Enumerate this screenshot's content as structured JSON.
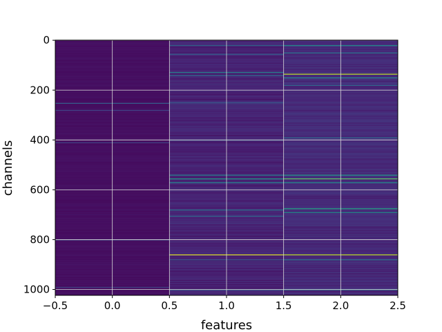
{
  "chart_data": {
    "type": "heatmap",
    "title": "",
    "xlabel": "features",
    "ylabel": "channels",
    "columns": [
      0,
      1,
      2
    ],
    "n_rows": 1024,
    "xlim": [
      -0.5,
      2.5
    ],
    "ylim": [
      1023.5,
      -0.5
    ],
    "y_inverted": true,
    "x_ticks": [
      -0.5,
      0.0,
      0.5,
      1.0,
      1.5,
      2.0,
      2.5
    ],
    "x_tick_labels": [
      "−0.5",
      "0.0",
      "0.5",
      "1.0",
      "1.5",
      "2.0",
      "2.5"
    ],
    "y_ticks": [
      0,
      200,
      400,
      600,
      800,
      1000
    ],
    "y_tick_labels": [
      "0",
      "200",
      "400",
      "600",
      "800",
      "1000"
    ],
    "grid": true,
    "colormap": "viridis",
    "background_value": 0.05,
    "column_base": [
      0.04,
      0.1,
      0.12
    ],
    "highlight_rows": [
      {
        "column": 0,
        "row": 252,
        "value": 0.3
      },
      {
        "column": 0,
        "row": 280,
        "value": 0.2
      },
      {
        "column": 0,
        "row": 410,
        "value": 0.2
      },
      {
        "column": 0,
        "row": 800,
        "value": 0.25
      },
      {
        "column": 0,
        "row": 990,
        "value": 0.2
      },
      {
        "column": 1,
        "row": 20,
        "value": 0.35
      },
      {
        "column": 1,
        "row": 55,
        "value": 0.3
      },
      {
        "column": 1,
        "row": 128,
        "value": 0.45
      },
      {
        "column": 1,
        "row": 140,
        "value": 0.35
      },
      {
        "column": 1,
        "row": 250,
        "value": 0.3
      },
      {
        "column": 1,
        "row": 400,
        "value": 0.3
      },
      {
        "column": 1,
        "row": 540,
        "value": 0.45
      },
      {
        "column": 1,
        "row": 555,
        "value": 0.55
      },
      {
        "column": 1,
        "row": 570,
        "value": 0.45
      },
      {
        "column": 1,
        "row": 680,
        "value": 0.4
      },
      {
        "column": 1,
        "row": 705,
        "value": 0.35
      },
      {
        "column": 1,
        "row": 860,
        "value": 0.95
      },
      {
        "column": 1,
        "row": 880,
        "value": 0.3
      },
      {
        "column": 1,
        "row": 1000,
        "value": 0.35
      },
      {
        "column": 2,
        "row": 20,
        "value": 0.5
      },
      {
        "column": 2,
        "row": 50,
        "value": 0.4
      },
      {
        "column": 2,
        "row": 135,
        "value": 0.9
      },
      {
        "column": 2,
        "row": 150,
        "value": 0.45
      },
      {
        "column": 2,
        "row": 180,
        "value": 0.35
      },
      {
        "column": 2,
        "row": 390,
        "value": 0.35
      },
      {
        "column": 2,
        "row": 540,
        "value": 0.55
      },
      {
        "column": 2,
        "row": 555,
        "value": 0.75
      },
      {
        "column": 2,
        "row": 570,
        "value": 0.5
      },
      {
        "column": 2,
        "row": 675,
        "value": 0.6
      },
      {
        "column": 2,
        "row": 690,
        "value": 0.5
      },
      {
        "column": 2,
        "row": 860,
        "value": 0.9
      },
      {
        "column": 2,
        "row": 880,
        "value": 0.4
      },
      {
        "column": 2,
        "row": 1000,
        "value": 0.45
      }
    ]
  },
  "colors": {
    "grid": "#d9d9d9",
    "axis": "#000000",
    "background": "#ffffff"
  }
}
